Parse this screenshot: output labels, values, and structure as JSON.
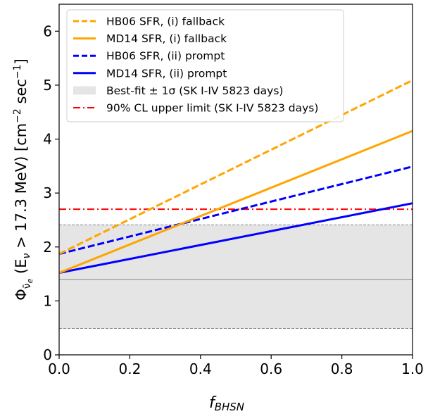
{
  "chart_data": {
    "type": "line",
    "xlabel_main": "f",
    "xlabel_sub": "BHSN",
    "ylabel": {
      "phi": "Φ",
      "sub": "ν̄",
      "subsub": "e",
      "open": " (E",
      "nu": "ν",
      "rest": " > 17.3 MeV) [cm",
      "exp1": "−2",
      "mid": " sec",
      "exp2": "−1",
      "close": "]"
    },
    "xlim": [
      0.0,
      1.0
    ],
    "ylim": [
      0,
      6.5
    ],
    "xticks": [
      {
        "value": 0.0,
        "label": "0.0"
      },
      {
        "value": 0.2,
        "label": "0.2"
      },
      {
        "value": 0.4,
        "label": "0.4"
      },
      {
        "value": 0.6,
        "label": "0.6"
      },
      {
        "value": 0.8,
        "label": "0.8"
      },
      {
        "value": 1.0,
        "label": "1.0"
      }
    ],
    "yticks": [
      {
        "value": 0,
        "label": "0"
      },
      {
        "value": 1,
        "label": "1"
      },
      {
        "value": 2,
        "label": "2"
      },
      {
        "value": 3,
        "label": "3"
      },
      {
        "value": 4,
        "label": "4"
      },
      {
        "value": 5,
        "label": "5"
      },
      {
        "value": 6,
        "label": "6"
      }
    ],
    "grid": false,
    "legend_position": "top-left",
    "series": [
      {
        "name": "HB06 SFR, (i) fallback",
        "color": "#FFA500",
        "style": "dashed",
        "x": [
          0.0,
          1.0
        ],
        "y": [
          1.87,
          5.09
        ]
      },
      {
        "name": "MD14 SFR, (i) fallback",
        "color": "#FFA500",
        "style": "solid",
        "x": [
          0.0,
          1.0
        ],
        "y": [
          1.52,
          4.15
        ]
      },
      {
        "name": "HB06 SFR, (ii) prompt",
        "color": "#0000FF",
        "style": "dashed",
        "x": [
          0.0,
          1.0
        ],
        "y": [
          1.87,
          3.49
        ]
      },
      {
        "name": "MD14 SFR, (ii) prompt",
        "color": "#0000FF",
        "style": "solid",
        "x": [
          0.0,
          1.0
        ],
        "y": [
          1.52,
          2.81
        ]
      }
    ],
    "band": {
      "name": "Best-fit ± 1σ (SK I-IV 5823 days)",
      "best": 1.4,
      "low": 0.49,
      "high": 2.41,
      "color": "#E5E5E5"
    },
    "upper_limit": {
      "name": "90% CL upper limit (SK I-IV 5823 days)",
      "value": 2.7,
      "color": "#FF0000",
      "style": "dashdot"
    }
  }
}
